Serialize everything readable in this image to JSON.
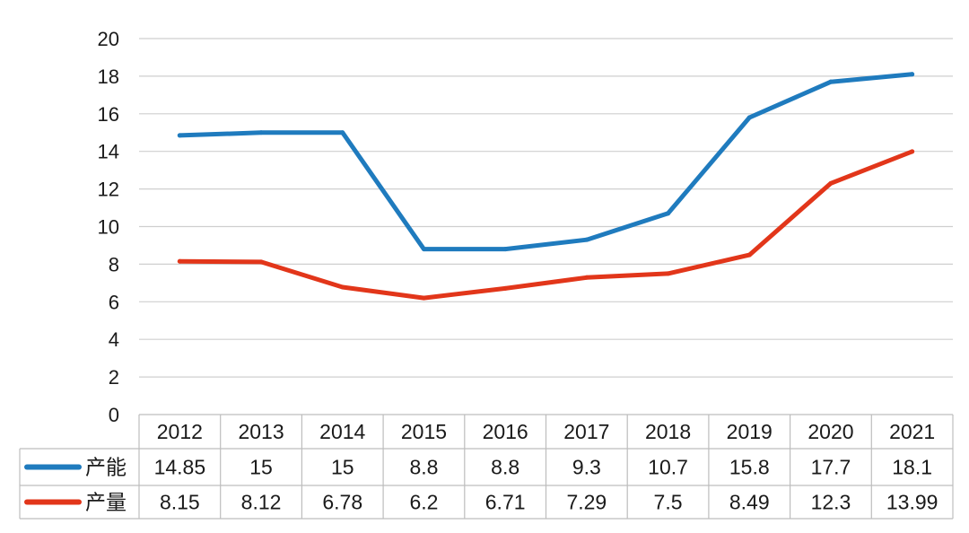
{
  "chart_data": {
    "type": "line",
    "title": "",
    "xlabel": "",
    "ylabel": "",
    "categories": [
      "2012",
      "2013",
      "2014",
      "2015",
      "2016",
      "2017",
      "2018",
      "2019",
      "2020",
      "2021"
    ],
    "ylim": [
      0,
      20
    ],
    "yticks": [
      "0",
      "2",
      "4",
      "6",
      "8",
      "10",
      "12",
      "14",
      "16",
      "18",
      "20"
    ],
    "grid": true,
    "legend": "data-table-left",
    "series": [
      {
        "name": "产能",
        "color": "#1F7BBE",
        "values": [
          14.85,
          15,
          15,
          8.8,
          8.8,
          9.3,
          10.7,
          15.8,
          17.7,
          18.1
        ],
        "labels": [
          "14.85",
          "15",
          "15",
          "8.8",
          "8.8",
          "9.3",
          "10.7",
          "15.8",
          "17.7",
          "18.1"
        ]
      },
      {
        "name": "产量",
        "color": "#E2361A",
        "values": [
          8.15,
          8.12,
          6.78,
          6.2,
          6.71,
          7.29,
          7.5,
          8.49,
          12.3,
          13.99
        ],
        "labels": [
          "8.15",
          "8.12",
          "6.78",
          "6.2",
          "6.71",
          "7.29",
          "7.5",
          "8.49",
          "12.3",
          "13.99"
        ]
      }
    ]
  }
}
